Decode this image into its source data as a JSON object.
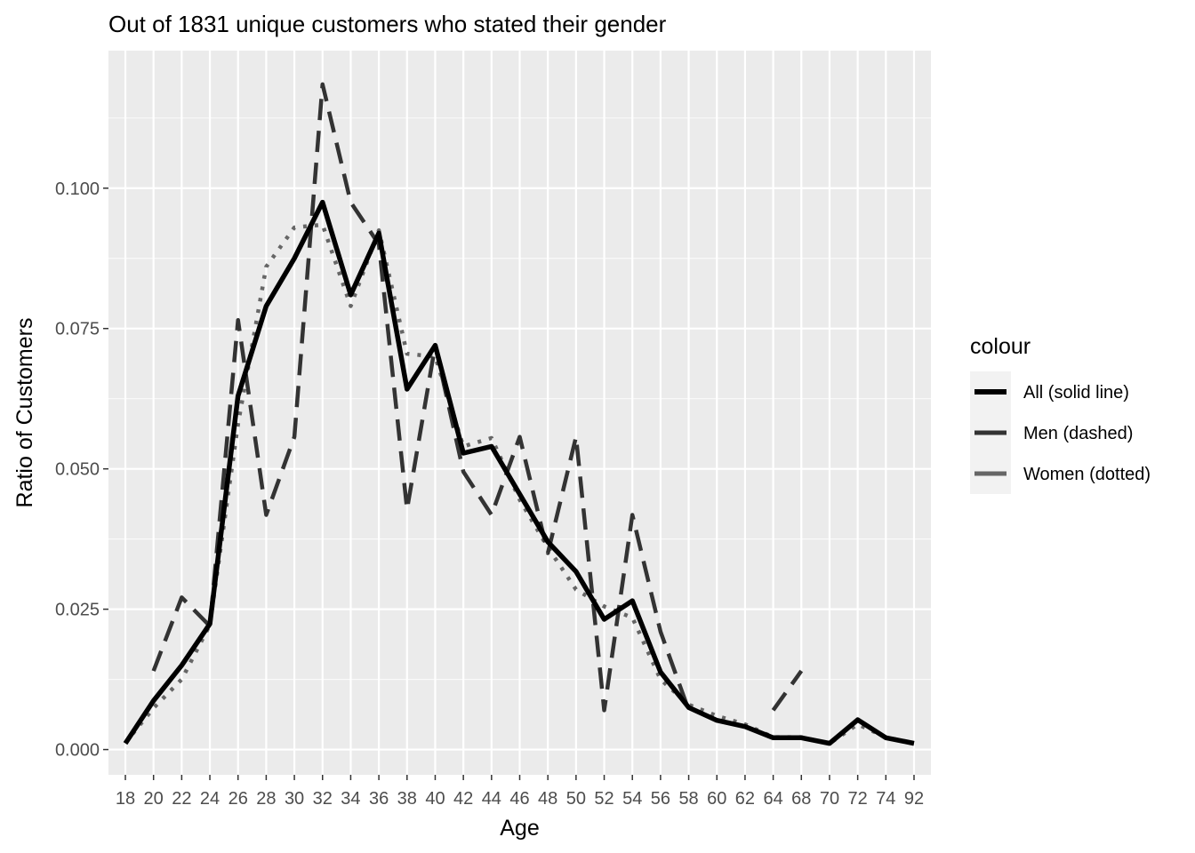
{
  "chart_data": {
    "type": "line",
    "title": "Out of 1831 unique customers who stated their gender",
    "xlabel": "Age",
    "ylabel": "Ratio of Customers",
    "categories": [
      "18",
      "20",
      "22",
      "24",
      "26",
      "28",
      "30",
      "32",
      "34",
      "36",
      "38",
      "40",
      "42",
      "44",
      "46",
      "48",
      "50",
      "52",
      "54",
      "56",
      "58",
      "60",
      "62",
      "64",
      "68",
      "70",
      "72",
      "74",
      "92"
    ],
    "ylim": [
      -0.0045,
      0.1245
    ],
    "y_ticks": [
      0.0,
      0.025,
      0.05,
      0.075,
      0.1
    ],
    "y_tick_labels": [
      "0.000",
      "0.025",
      "0.050",
      "0.075",
      "0.100"
    ],
    "grid": true,
    "legend": {
      "title": "colour",
      "position": "right"
    },
    "series": [
      {
        "name": "All (solid line)",
        "color": "#000000",
        "style": "solid",
        "values": [
          0.0011,
          0.0087,
          0.015,
          0.0224,
          0.063,
          0.079,
          0.0875,
          0.0975,
          0.081,
          0.092,
          0.0642,
          0.072,
          0.0528,
          0.054,
          0.0455,
          0.037,
          0.0317,
          0.0232,
          0.0265,
          0.0138,
          0.0075,
          0.0052,
          0.0041,
          0.0021,
          0.0021,
          0.0011,
          0.0053,
          0.0021,
          0.0011
        ]
      },
      {
        "name": "Men (dashed)",
        "color": "#333333",
        "style": "dashed",
        "values": [
          null,
          0.014,
          0.0271,
          0.022,
          0.0765,
          0.0418,
          0.0557,
          0.1185,
          0.0975,
          0.09,
          0.0428,
          0.072,
          0.0495,
          0.0418,
          0.0557,
          0.035,
          0.0557,
          0.007,
          0.0418,
          0.021,
          0.007,
          null,
          null,
          0.007,
          0.014,
          null,
          null,
          null,
          null
        ]
      },
      {
        "name": "Women (dotted)",
        "color": "#666666",
        "style": "dotted",
        "values": [
          0.0012,
          0.0074,
          0.0125,
          0.0222,
          0.058,
          0.086,
          0.093,
          0.0935,
          0.079,
          0.0925,
          0.0705,
          0.07,
          0.054,
          0.0555,
          0.0445,
          0.036,
          0.0285,
          0.0255,
          0.0235,
          0.0125,
          0.008,
          0.006,
          0.0045,
          0.0022,
          0.0022,
          0.0011,
          0.0045,
          0.0022,
          0.0011
        ]
      }
    ]
  }
}
